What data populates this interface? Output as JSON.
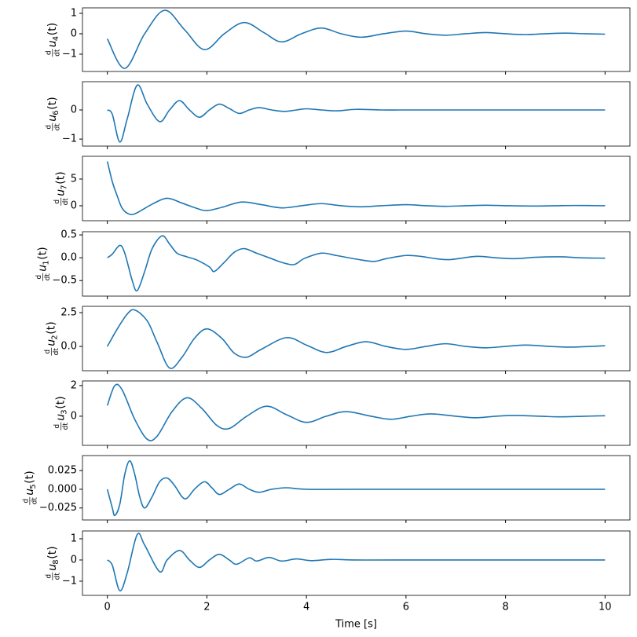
{
  "chart_data": [
    {
      "type": "line",
      "color": "#1f77b4",
      "ylabel": {
        "num": "d",
        "den": "dt",
        "var": "u",
        "sub": "4",
        "arg": "(t)"
      },
      "x": [
        0,
        0.35,
        0.75,
        1.15,
        1.55,
        1.95,
        2.35,
        2.75,
        3.15,
        3.5,
        3.9,
        4.3,
        4.7,
        5.1,
        5.55,
        6.0,
        6.4,
        6.8,
        7.2,
        7.6,
        8.0,
        8.4,
        8.8,
        9.2,
        9.6,
        10
      ],
      "values": [
        -0.25,
        -1.7,
        0,
        1.15,
        0.2,
        -0.78,
        0,
        0.55,
        0.05,
        -0.4,
        0,
        0.28,
        0,
        -0.17,
        0,
        0.13,
        0,
        -0.07,
        0,
        0.06,
        0,
        -0.04,
        0,
        0.03,
        0,
        -0.02
      ],
      "xlim": [
        -0.5,
        10.5
      ],
      "xticks": [
        0,
        2,
        4,
        6,
        8,
        10
      ],
      "ylim": [
        -1.85,
        1.27
      ],
      "yticks": [
        {
          "value": -1,
          "label": "−1"
        },
        0,
        1
      ]
    },
    {
      "type": "line",
      "color": "#1f77b4",
      "ylabel": {
        "num": "d",
        "den": "dt",
        "var": "u",
        "sub": "6",
        "arg": "(t)"
      },
      "x": [
        0,
        0.1,
        0.25,
        0.4,
        0.6,
        0.8,
        1.05,
        1.25,
        1.45,
        1.65,
        1.85,
        2.05,
        2.25,
        2.45,
        2.65,
        2.85,
        3.05,
        3.3,
        3.55,
        3.8,
        4.0,
        4.3,
        4.6,
        5,
        5.5,
        6,
        7,
        8,
        9,
        10
      ],
      "values": [
        0,
        -0.15,
        -1.1,
        -0.3,
        0.85,
        0.2,
        -0.4,
        0,
        0.32,
        0,
        -0.25,
        0,
        0.2,
        0.05,
        -0.12,
        0,
        0.08,
        0,
        -0.05,
        0,
        0.04,
        0,
        -0.03,
        0.02,
        0,
        0,
        0,
        0,
        0,
        0
      ],
      "xlim": [
        -0.5,
        10.5
      ],
      "xticks": [
        0,
        2,
        4,
        6,
        8,
        10
      ],
      "ylim": [
        -1.24,
        0.97
      ],
      "yticks": [
        {
          "value": -1,
          "label": "−1"
        },
        0
      ]
    },
    {
      "type": "line",
      "color": "#1f77b4",
      "ylabel": {
        "num": "d",
        "den": "dt",
        "var": "u",
        "sub": "7",
        "arg": "(t)"
      },
      "x": [
        0,
        0.1,
        0.2,
        0.3,
        0.45,
        0.6,
        0.9,
        1.2,
        1.5,
        1.8,
        2.0,
        2.3,
        2.7,
        3.1,
        3.5,
        3.9,
        4.3,
        4.7,
        5.1,
        5.5,
        6.0,
        6.4,
        6.8,
        7.2,
        7.6,
        8.1,
        8.6,
        9,
        9.4,
        10
      ],
      "values": [
        8.3,
        4.5,
        1.8,
        -0.5,
        -1.6,
        -1.3,
        0.3,
        1.4,
        0.5,
        -0.5,
        -0.9,
        -0.3,
        0.7,
        0.2,
        -0.4,
        0,
        0.4,
        0,
        -0.2,
        0,
        0.2,
        0,
        -0.1,
        0,
        0.1,
        0,
        -0.05,
        0,
        0.05,
        0
      ],
      "xlim": [
        -0.5,
        10.5
      ],
      "xticks": [
        0,
        2,
        4,
        6,
        8,
        10
      ],
      "ylim": [
        -2.8,
        9.26
      ],
      "yticks": [
        0,
        5
      ]
    },
    {
      "type": "line",
      "color": "#1f77b4",
      "ylabel": {
        "num": "d",
        "den": "dt",
        "var": "u",
        "sub": "1",
        "arg": "(t)"
      },
      "x": [
        0,
        0.1,
        0.25,
        0.35,
        0.5,
        0.6,
        0.75,
        0.9,
        1.1,
        1.25,
        1.4,
        1.6,
        1.8,
        2.05,
        2.15,
        2.35,
        2.55,
        2.75,
        3.0,
        3.3,
        3.5,
        3.75,
        3.95,
        4.3,
        4.6,
        5,
        5.35,
        5.6,
        6.0,
        6.3,
        6.6,
        6.9,
        7.4,
        7.8,
        8.2,
        8.6,
        9.1,
        9.5,
        10
      ],
      "values": [
        0,
        0.08,
        0.27,
        0.1,
        -0.5,
        -0.72,
        -0.3,
        0.2,
        0.48,
        0.3,
        0.1,
        0.02,
        -0.05,
        -0.2,
        -0.3,
        -0.1,
        0.12,
        0.2,
        0.1,
        -0.02,
        -0.1,
        -0.15,
        -0.02,
        0.1,
        0.05,
        -0.03,
        -0.08,
        -0.02,
        0.05,
        0.03,
        -0.02,
        -0.04,
        0.03,
        0,
        -0.02,
        0.01,
        0.02,
        0,
        -0.01
      ],
      "xlim": [
        -0.5,
        10.5
      ],
      "xticks": [
        0,
        2,
        4,
        6,
        8,
        10
      ],
      "ylim": [
        -0.84,
        0.57
      ],
      "yticks": [
        {
          "value": -0.5,
          "label": "−0.5"
        },
        {
          "value": 0,
          "label": "0.0"
        },
        0.5
      ]
    },
    {
      "type": "line",
      "color": "#1f77b4",
      "ylabel": {
        "num": "d",
        "den": "dt",
        "var": "u",
        "sub": "2",
        "arg": "(t)"
      },
      "x": [
        0,
        0.2,
        0.4,
        0.55,
        0.8,
        1.0,
        1.25,
        1.5,
        1.75,
        2.0,
        2.3,
        2.55,
        2.8,
        3.1,
        3.6,
        4.0,
        4.4,
        4.8,
        5.2,
        5.6,
        6.0,
        6.4,
        6.8,
        7.2,
        7.6,
        8.0,
        8.4,
        8.9,
        9.3,
        9.7,
        10
      ],
      "values": [
        0,
        1.3,
        2.4,
        2.7,
        1.9,
        0.3,
        -1.6,
        -0.8,
        0.6,
        1.3,
        0.6,
        -0.5,
        -0.8,
        -0.2,
        0.65,
        0.1,
        -0.45,
        0,
        0.35,
        0,
        -0.22,
        0,
        0.2,
        0,
        -0.1,
        0,
        0.1,
        0,
        -0.05,
        0,
        0.05
      ],
      "xlim": [
        -0.5,
        10.5
      ],
      "xticks": [
        0,
        2,
        4,
        6,
        8,
        10
      ],
      "ylim": [
        -1.8,
        2.97
      ],
      "yticks": [
        {
          "value": 0,
          "label": "0.0"
        },
        2.5
      ]
    },
    {
      "type": "line",
      "color": "#1f77b4",
      "ylabel": {
        "num": "d",
        "den": "dt",
        "var": "u",
        "sub": "3",
        "arg": "(t)"
      },
      "x": [
        0,
        0.15,
        0.3,
        0.55,
        0.8,
        1.0,
        1.3,
        1.6,
        1.9,
        2.2,
        2.45,
        2.8,
        3.2,
        3.6,
        4.0,
        4.4,
        4.8,
        5.3,
        5.7,
        6.1,
        6.5,
        7.0,
        7.4,
        7.8,
        8.2,
        8.7,
        9.1,
        9.6,
        10
      ],
      "values": [
        0.7,
        2.0,
        1.7,
        -0.2,
        -1.5,
        -1.3,
        0.3,
        1.2,
        0.5,
        -0.6,
        -0.8,
        0,
        0.65,
        0.1,
        -0.4,
        0,
        0.3,
        0,
        -0.2,
        0,
        0.15,
        0,
        -0.1,
        0,
        0.05,
        0,
        -0.04,
        0,
        0.03
      ],
      "xlim": [
        -0.5,
        10.5
      ],
      "xticks": [
        0,
        2,
        4,
        6,
        8,
        10
      ],
      "ylim": [
        -1.9,
        2.3
      ],
      "yticks": [
        0,
        2
      ]
    },
    {
      "type": "line",
      "color": "#1f77b4",
      "ylabel": {
        "num": "d",
        "den": "dt",
        "var": "u",
        "sub": "5",
        "arg": "(t)"
      },
      "x": [
        0,
        0.1,
        0.15,
        0.25,
        0.35,
        0.45,
        0.55,
        0.65,
        0.75,
        0.9,
        1.05,
        1.2,
        1.35,
        1.5,
        1.6,
        1.75,
        1.95,
        2.1,
        2.25,
        2.45,
        2.65,
        2.85,
        3.05,
        3.3,
        3.6,
        4,
        5,
        10
      ],
      "values": [
        0,
        -0.025,
        -0.035,
        -0.02,
        0.02,
        0.038,
        0.02,
        -0.01,
        -0.025,
        -0.01,
        0.01,
        0.015,
        0.005,
        -0.01,
        -0.012,
        0,
        0.01,
        0.002,
        -0.007,
        0,
        0.007,
        0,
        -0.004,
        0,
        0.002,
        0,
        0,
        0
      ],
      "xlim": [
        -0.5,
        10.5
      ],
      "xticks": [
        0,
        2,
        4,
        6,
        8,
        10
      ],
      "ylim": [
        -0.041,
        0.045
      ],
      "yticks": [
        {
          "value": -0.025,
          "label": "−0.025"
        },
        {
          "value": 0,
          "label": "0.000"
        },
        0.025
      ]
    },
    {
      "type": "line",
      "color": "#1f77b4",
      "ylabel": {
        "num": "d",
        "den": "dt",
        "var": "u",
        "sub": "8",
        "arg": "(t)"
      },
      "xlabel": "Time [s]",
      "x": [
        0,
        0.1,
        0.25,
        0.4,
        0.6,
        0.75,
        1.05,
        1.2,
        1.45,
        1.65,
        1.85,
        2.05,
        2.25,
        2.45,
        2.6,
        2.85,
        3.0,
        3.25,
        3.5,
        3.8,
        4.1,
        4.5,
        5,
        6,
        10
      ],
      "values": [
        0,
        -0.25,
        -1.45,
        -0.6,
        1.2,
        0.7,
        -0.55,
        0,
        0.45,
        0,
        -0.35,
        0,
        0.27,
        0,
        -0.2,
        0.1,
        -0.05,
        0.12,
        -0.05,
        0.05,
        -0.03,
        0.03,
        0,
        0,
        0
      ],
      "xlim": [
        -0.5,
        10.5
      ],
      "xticks": [
        0,
        2,
        4,
        6,
        8,
        10
      ],
      "ylim": [
        -1.67,
        1.37
      ],
      "yticks": [
        {
          "value": -1,
          "label": "−1"
        },
        0,
        1
      ]
    }
  ]
}
